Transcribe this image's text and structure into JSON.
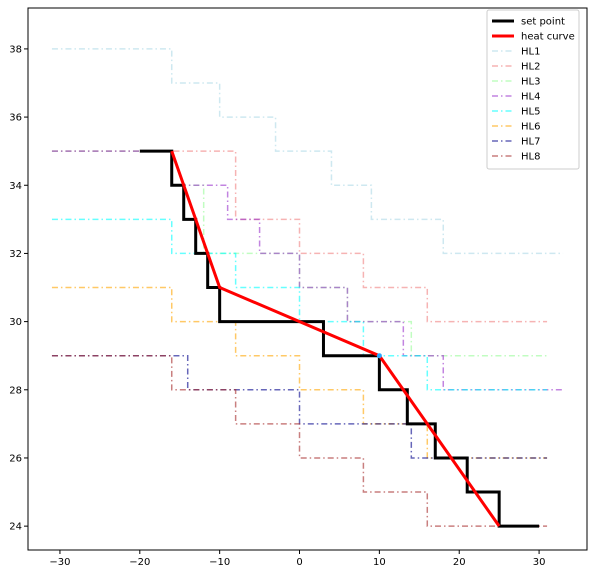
{
  "chart_data": {
    "type": "line",
    "title": "",
    "xlabel": "",
    "ylabel": "",
    "xlim": [
      -34,
      36
    ],
    "ylim": [
      23.3,
      39.2
    ],
    "xticks": [
      -30,
      -20,
      -10,
      0,
      10,
      20,
      30
    ],
    "yticks": [
      24,
      26,
      28,
      30,
      32,
      34,
      36,
      38
    ],
    "xtick_labels": [
      "−30",
      "−20",
      "−10",
      "0",
      "10",
      "20",
      "30"
    ],
    "ytick_labels": [
      "24",
      "26",
      "28",
      "30",
      "32",
      "34",
      "36",
      "38"
    ],
    "grid": false,
    "legend_position": "upper right",
    "legend": [
      "set point",
      "heat curve",
      "HL1",
      "HL2",
      "HL3",
      "HL4",
      "HL5",
      "HL6",
      "HL7",
      "HL8"
    ],
    "series": [
      {
        "name": "set point",
        "style": "solid-thick",
        "color": "#000000",
        "drawstyle": "steps-post",
        "x": [
          -20,
          -16,
          -16,
          -14.5,
          -14.5,
          -13,
          -13,
          -11.5,
          -11.5,
          -10,
          -10,
          3,
          3,
          10,
          10,
          13.5,
          13.5,
          17,
          17,
          21,
          21,
          25,
          25,
          30
        ],
        "y": [
          35,
          35,
          34,
          34,
          33,
          33,
          32,
          32,
          31,
          31,
          30,
          30,
          29,
          29,
          28,
          28,
          27,
          27,
          26,
          26,
          25,
          25,
          24,
          24
        ]
      },
      {
        "name": "heat curve",
        "style": "solid-thick",
        "color": "#ff0000",
        "x": [
          -16,
          -10,
          10,
          25
        ],
        "y": [
          35,
          31,
          29,
          24
        ]
      },
      {
        "name": "HL1",
        "style": "dashdot",
        "color": "#add8e6",
        "x": [
          -31,
          -16,
          -16,
          -10,
          -10,
          -3,
          -3,
          4,
          4,
          9,
          9,
          18,
          18,
          33
        ],
        "y": [
          38,
          38,
          37,
          37,
          36,
          36,
          35,
          35,
          34,
          34,
          33,
          33,
          32,
          32
        ]
      },
      {
        "name": "HL2",
        "style": "dashdot",
        "color": "#f08080",
        "x": [
          -31,
          -8,
          -8,
          0,
          0,
          8,
          8,
          16,
          16,
          31
        ],
        "y": [
          35,
          35,
          33,
          33,
          32,
          32,
          31,
          31,
          30,
          30
        ]
      },
      {
        "name": "HL3",
        "style": "dashdot",
        "color": "#98fb98",
        "x": [
          -31,
          -16,
          -16,
          -12,
          -12,
          0,
          0,
          6,
          6,
          14,
          14,
          31
        ],
        "y": [
          35,
          35,
          34,
          34,
          32,
          32,
          31,
          31,
          30,
          30,
          29,
          29
        ]
      },
      {
        "name": "HL4",
        "style": "dashdot",
        "color": "#9932cc",
        "x": [
          -31,
          -16,
          -16,
          -9,
          -9,
          -5,
          -5,
          0,
          0,
          6,
          6,
          13,
          13,
          18,
          18,
          33
        ],
        "y": [
          35,
          35,
          34,
          34,
          33,
          33,
          32,
          32,
          31,
          31,
          30,
          30,
          29,
          29,
          28,
          28
        ]
      },
      {
        "name": "HL5",
        "style": "dashdot",
        "color": "#00ffff",
        "x": [
          -31,
          -16,
          -16,
          -8,
          -8,
          0,
          0,
          8,
          8,
          16,
          16,
          31
        ],
        "y": [
          33,
          33,
          32,
          32,
          31,
          31,
          30,
          30,
          29,
          29,
          28,
          28
        ]
      },
      {
        "name": "HL6",
        "style": "dashdot",
        "color": "#ffa500",
        "x": [
          -31,
          -16,
          -16,
          -8,
          -8,
          0,
          0,
          8,
          8,
          16,
          16,
          31
        ],
        "y": [
          31,
          31,
          30,
          30,
          29,
          29,
          28,
          28,
          27,
          27,
          26,
          26
        ]
      },
      {
        "name": "HL7",
        "style": "dashdot",
        "color": "#00008b",
        "x": [
          -31,
          -14,
          -14,
          0,
          0,
          14,
          14,
          31
        ],
        "y": [
          29,
          29,
          28,
          28,
          27,
          27,
          26,
          26
        ]
      },
      {
        "name": "HL8",
        "style": "dashdot",
        "color": "#a52a2a",
        "x": [
          -31,
          -16,
          -16,
          -8,
          -8,
          0,
          0,
          8,
          8,
          16,
          16,
          31
        ],
        "y": [
          29,
          29,
          28,
          28,
          27,
          27,
          26,
          26,
          25,
          25,
          24,
          24
        ]
      }
    ],
    "marker_point": {
      "x": 10,
      "y": 29,
      "color": "#2aa7ff"
    }
  }
}
